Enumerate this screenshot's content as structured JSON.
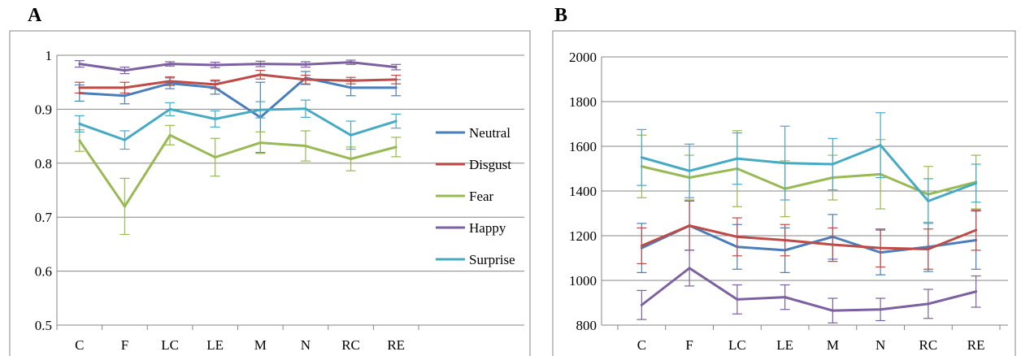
{
  "panels": {
    "a": {
      "label": "A"
    },
    "b": {
      "label": "B"
    }
  },
  "colors": {
    "Neutral": "#4a7ebb",
    "Disgust": "#be4b48",
    "Fear": "#98b954",
    "Happy": "#7d60a0",
    "Surprise": "#46aac5"
  },
  "chart_data": [
    {
      "id": "A",
      "type": "line",
      "title": "",
      "xlabel": "",
      "ylabel": "",
      "categories": [
        "C",
        "F",
        "LC",
        "LE",
        "M",
        "N",
        "RC",
        "RE"
      ],
      "ylim": [
        0.5,
        1.0
      ],
      "yticks": [
        "0.5",
        "0.6",
        "0.7",
        "0.8",
        "0.9",
        "1"
      ],
      "grid": true,
      "legend_position": "right",
      "error_bars": true,
      "series": [
        {
          "name": "Neutral",
          "values": [
            0.93,
            0.925,
            0.948,
            0.94,
            0.885,
            0.958,
            0.94,
            0.94
          ],
          "errors": [
            0.015,
            0.015,
            0.01,
            0.012,
            0.065,
            0.012,
            0.015,
            0.015
          ]
        },
        {
          "name": "Disgust",
          "values": [
            0.94,
            0.94,
            0.952,
            0.946,
            0.964,
            0.955,
            0.953,
            0.955
          ],
          "errors": [
            0.01,
            0.01,
            0.008,
            0.008,
            0.008,
            0.008,
            0.006,
            0.008
          ]
        },
        {
          "name": "Fear",
          "values": [
            0.842,
            0.72,
            0.852,
            0.811,
            0.838,
            0.832,
            0.808,
            0.83
          ],
          "errors": [
            0.02,
            0.052,
            0.018,
            0.035,
            0.02,
            0.028,
            0.022,
            0.018
          ]
        },
        {
          "name": "Happy",
          "values": [
            0.984,
            0.972,
            0.984,
            0.982,
            0.984,
            0.983,
            0.987,
            0.978
          ],
          "errors": [
            0.006,
            0.006,
            0.004,
            0.005,
            0.005,
            0.005,
            0.004,
            0.005
          ]
        },
        {
          "name": "Surprise",
          "values": [
            0.873,
            0.843,
            0.9,
            0.882,
            0.899,
            0.901,
            0.852,
            0.878
          ],
          "errors": [
            0.015,
            0.017,
            0.012,
            0.015,
            0.015,
            0.016,
            0.026,
            0.013
          ]
        }
      ]
    },
    {
      "id": "B",
      "type": "line",
      "title": "",
      "xlabel": "",
      "ylabel": "",
      "categories": [
        "C",
        "F",
        "LC",
        "LE",
        "M",
        "N",
        "RC",
        "RE"
      ],
      "ylim": [
        800,
        2000
      ],
      "yticks": [
        "800",
        "1000",
        "1200",
        "1400",
        "1600",
        "1800",
        "2000"
      ],
      "grid": true,
      "legend_position": "none",
      "error_bars": true,
      "series": [
        {
          "name": "Neutral",
          "values": [
            1145,
            1245,
            1150,
            1135,
            1195,
            1125,
            1150,
            1180
          ],
          "errors": [
            110,
            110,
            100,
            100,
            100,
            100,
            110,
            130
          ]
        },
        {
          "name": "Disgust",
          "values": [
            1155,
            1245,
            1195,
            1180,
            1160,
            1145,
            1140,
            1225
          ],
          "errors": [
            80,
            110,
            85,
            70,
            75,
            85,
            90,
            90
          ]
        },
        {
          "name": "Fear",
          "values": [
            1510,
            1460,
            1500,
            1410,
            1460,
            1475,
            1385,
            1440
          ],
          "errors": [
            140,
            100,
            170,
            125,
            100,
            155,
            125,
            120
          ]
        },
        {
          "name": "Happy",
          "values": [
            890,
            1055,
            915,
            925,
            865,
            870,
            895,
            950
          ],
          "errors": [
            65,
            80,
            65,
            55,
            55,
            50,
            65,
            70
          ]
        },
        {
          "name": "Surprise",
          "values": [
            1550,
            1490,
            1545,
            1525,
            1520,
            1605,
            1355,
            1435
          ],
          "errors": [
            125,
            120,
            115,
            165,
            115,
            145,
            100,
            85
          ]
        }
      ]
    }
  ]
}
